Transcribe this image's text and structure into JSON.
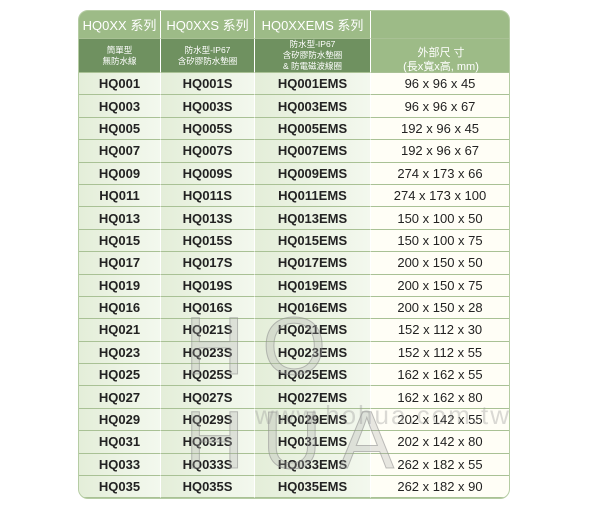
{
  "header": {
    "series": [
      "HQ0XX 系列",
      "HQ0XXS 系列",
      "HQ0XXEMS 系列",
      ""
    ],
    "descriptions": [
      [
        "簡單型",
        "無防水線"
      ],
      [
        "防水型-IP67",
        "含矽膠防水墊圈"
      ],
      [
        "防水型-IP67",
        "含矽膠防水墊圈",
        "& 防電磁波線圈"
      ]
    ],
    "dimensions": [
      "外部尺 寸",
      "(長x寬x高, mm)"
    ]
  },
  "rows": [
    [
      "HQ001",
      "HQ001S",
      "HQ001EMS",
      "96 x 96 x 45"
    ],
    [
      "HQ003",
      "HQ003S",
      "HQ003EMS",
      "96 x 96 x 67"
    ],
    [
      "HQ005",
      "HQ005S",
      "HQ005EMS",
      "192 x 96 x 45"
    ],
    [
      "HQ007",
      "HQ007S",
      "HQ007EMS",
      "192 x 96 x 67"
    ],
    [
      "HQ009",
      "HQ009S",
      "HQ009EMS",
      "274 x 173 x 66"
    ],
    [
      "HQ011",
      "HQ011S",
      "HQ011EMS",
      "274 x 173 x 100"
    ],
    [
      "HQ013",
      "HQ013S",
      "HQ013EMS",
      "150 x 100 x 50"
    ],
    [
      "HQ015",
      "HQ015S",
      "HQ015EMS",
      "150 x 100 x 75"
    ],
    [
      "HQ017",
      "HQ017S",
      "HQ017EMS",
      "200 x 150 x 50"
    ],
    [
      "HQ019",
      "HQ019S",
      "HQ019EMS",
      "200 x 150 x 75"
    ],
    [
      "HQ016",
      "HQ016S",
      "HQ016EMS",
      "200 x 150 x 28"
    ],
    [
      "HQ021",
      "HQ021S",
      "HQ021EMS",
      "152 x 112 x 30"
    ],
    [
      "HQ023",
      "HQ023S",
      "HQ023EMS",
      "152 x 112 x 55"
    ],
    [
      "HQ025",
      "HQ025S",
      "HQ025EMS",
      "162 x 162 x 55"
    ],
    [
      "HQ027",
      "HQ027S",
      "HQ027EMS",
      "162 x 162 x 80"
    ],
    [
      "HQ029",
      "HQ029S",
      "HQ029EMS",
      "202 x 142 x 55"
    ],
    [
      "HQ031",
      "HQ031S",
      "HQ031EMS",
      "202 x 142 x 80"
    ],
    [
      "HQ033",
      "HQ033S",
      "HQ033EMS",
      "262 x 182 x 55"
    ],
    [
      "HQ035",
      "HQ035S",
      "HQ035EMS",
      "262 x 182 x 90"
    ]
  ],
  "watermark": {
    "logo": "HO HUA",
    "url": "www.hohua.com.tw"
  }
}
